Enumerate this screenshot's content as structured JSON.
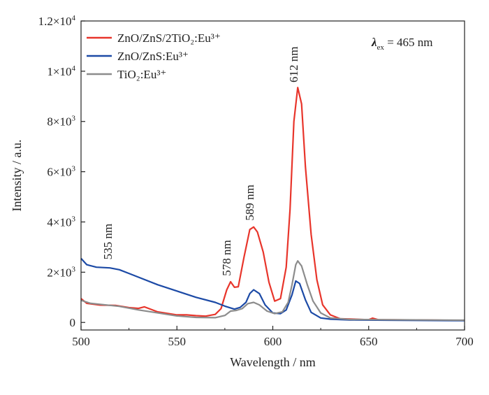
{
  "chart_data": {
    "type": "line",
    "xlabel": "Wavelength / nm",
    "ylabel": "Intensity / a.u.",
    "xlim": [
      500,
      700
    ],
    "ylim": [
      -300,
      12000
    ],
    "x_ticks": [
      500,
      550,
      600,
      650,
      700
    ],
    "y_ticks": [
      {
        "value": 0,
        "mantissa": "0",
        "exp": ""
      },
      {
        "value": 2000,
        "mantissa": "2×10",
        "exp": "3"
      },
      {
        "value": 4000,
        "mantissa": "4×10",
        "exp": "3"
      },
      {
        "value": 6000,
        "mantissa": "6×10",
        "exp": "3"
      },
      {
        "value": 8000,
        "mantissa": "8×10",
        "exp": "3"
      },
      {
        "value": 10000,
        "mantissa": "1×10",
        "exp": "4"
      },
      {
        "value": 12000,
        "mantissa": "1.2×10",
        "exp": "4"
      }
    ],
    "grid": false,
    "legend_position": "top-left",
    "excitation": {
      "prefix": "λ",
      "sub": "ex",
      "suffix": " = 465 nm"
    },
    "annotations": [
      {
        "text": "535 nm",
        "x": 516,
        "y": 2500
      },
      {
        "text": "578 nm",
        "x": 578,
        "y": 1850
      },
      {
        "text": "589 nm",
        "x": 590,
        "y": 4050
      },
      {
        "text": "612 nm",
        "x": 613,
        "y": 9550
      }
    ],
    "series": [
      {
        "name": "ZnO/ZnS/2TiO₂:Eu³⁺",
        "color": "#e8352b",
        "points": [
          [
            500,
            950
          ],
          [
            503,
            760
          ],
          [
            510,
            690
          ],
          [
            518,
            680
          ],
          [
            525,
            590
          ],
          [
            530,
            560
          ],
          [
            533,
            620
          ],
          [
            540,
            420
          ],
          [
            550,
            300
          ],
          [
            555,
            300
          ],
          [
            560,
            270
          ],
          [
            565,
            250
          ],
          [
            570,
            320
          ],
          [
            573,
            550
          ],
          [
            576,
            1300
          ],
          [
            578,
            1620
          ],
          [
            580,
            1400
          ],
          [
            582,
            1420
          ],
          [
            585,
            2600
          ],
          [
            588,
            3700
          ],
          [
            590,
            3800
          ],
          [
            592,
            3600
          ],
          [
            595,
            2800
          ],
          [
            598,
            1600
          ],
          [
            601,
            850
          ],
          [
            604,
            950
          ],
          [
            607,
            2200
          ],
          [
            609,
            4500
          ],
          [
            611,
            8000
          ],
          [
            613,
            9350
          ],
          [
            615,
            8700
          ],
          [
            617,
            6200
          ],
          [
            620,
            3500
          ],
          [
            623,
            1700
          ],
          [
            626,
            700
          ],
          [
            630,
            300
          ],
          [
            635,
            150
          ],
          [
            650,
            110
          ],
          [
            652,
            170
          ],
          [
            655,
            110
          ],
          [
            670,
            100
          ],
          [
            700,
            80
          ]
        ]
      },
      {
        "name": "ZnO/ZnS:Eu³⁺",
        "color": "#1c4aa6",
        "points": [
          [
            500,
            2550
          ],
          [
            503,
            2300
          ],
          [
            508,
            2200
          ],
          [
            515,
            2170
          ],
          [
            520,
            2100
          ],
          [
            525,
            1950
          ],
          [
            530,
            1800
          ],
          [
            540,
            1500
          ],
          [
            550,
            1250
          ],
          [
            560,
            1000
          ],
          [
            570,
            800
          ],
          [
            575,
            650
          ],
          [
            580,
            530
          ],
          [
            583,
            600
          ],
          [
            586,
            800
          ],
          [
            588,
            1150
          ],
          [
            590,
            1300
          ],
          [
            593,
            1150
          ],
          [
            596,
            700
          ],
          [
            600,
            380
          ],
          [
            604,
            350
          ],
          [
            607,
            500
          ],
          [
            610,
            1100
          ],
          [
            612,
            1650
          ],
          [
            614,
            1550
          ],
          [
            617,
            900
          ],
          [
            620,
            400
          ],
          [
            625,
            180
          ],
          [
            630,
            130
          ],
          [
            640,
            100
          ],
          [
            660,
            90
          ],
          [
            700,
            70
          ]
        ]
      },
      {
        "name": "TiO₂:Eu³⁺",
        "color": "#8c8c8c",
        "points": [
          [
            500,
            880
          ],
          [
            505,
            760
          ],
          [
            510,
            720
          ],
          [
            520,
            640
          ],
          [
            530,
            500
          ],
          [
            540,
            380
          ],
          [
            550,
            260
          ],
          [
            560,
            200
          ],
          [
            570,
            190
          ],
          [
            575,
            280
          ],
          [
            578,
            450
          ],
          [
            581,
            480
          ],
          [
            584,
            550
          ],
          [
            587,
            750
          ],
          [
            590,
            800
          ],
          [
            593,
            700
          ],
          [
            597,
            450
          ],
          [
            601,
            350
          ],
          [
            605,
            420
          ],
          [
            608,
            800
          ],
          [
            610,
            1500
          ],
          [
            612,
            2300
          ],
          [
            613,
            2450
          ],
          [
            615,
            2250
          ],
          [
            618,
            1500
          ],
          [
            621,
            850
          ],
          [
            625,
            380
          ],
          [
            630,
            180
          ],
          [
            640,
            120
          ],
          [
            660,
            110
          ],
          [
            700,
            90
          ]
        ]
      }
    ]
  }
}
